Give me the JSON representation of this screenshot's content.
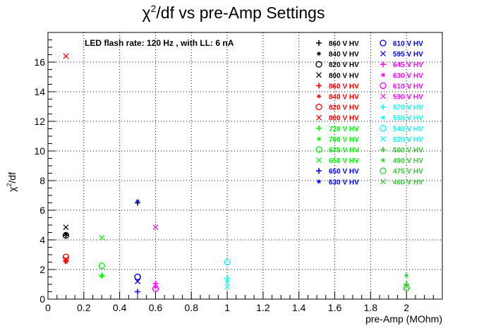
{
  "chart_data": {
    "type": "scatter",
    "title_main": "χ",
    "title_sup": "2",
    "title_rest": "/df vs pre-Amp Settings",
    "subtitle": "LED flash rate: 120 Hz , with LL: 6 nA",
    "xlabel": "pre-Amp (MOhm)",
    "ylabel_main": "χ",
    "ylabel_sup": "2",
    "ylabel_rest": "/df",
    "xlim": [
      0,
      2.2
    ],
    "ylim": [
      0,
      18
    ],
    "xticks": [
      "0",
      "0.2",
      "0.4",
      "0.6",
      "0.8",
      "1",
      "1.2",
      "1.4",
      "1.6",
      "1.8",
      "2"
    ],
    "yticks": [
      "0",
      "2",
      "4",
      "6",
      "8",
      "10",
      "12",
      "14",
      "16"
    ],
    "grid": true,
    "legend_position": "top-right",
    "series": [
      {
        "name": "860 V HV",
        "color": "#000000",
        "marker": "plus",
        "points": [
          [
            0.1,
            4.3
          ],
          [
            0.5,
            6.5
          ]
        ]
      },
      {
        "name": "840 V HV",
        "color": "#000000",
        "marker": "star",
        "points": [
          [
            0.1,
            4.4
          ]
        ]
      },
      {
        "name": "820 V HV",
        "color": "#000000",
        "marker": "circle",
        "points": [
          [
            0.1,
            4.3
          ],
          [
            0.5,
            1.5
          ]
        ]
      },
      {
        "name": "800 V HV",
        "color": "#000000",
        "marker": "cross",
        "points": [
          [
            0.1,
            4.85
          ],
          [
            0.5,
            1.2
          ]
        ]
      },
      {
        "name": "860 V HV",
        "color": "#ff0000",
        "marker": "plus",
        "points": [
          [
            0.1,
            2.6
          ]
        ]
      },
      {
        "name": "840 V HV",
        "color": "#ff0000",
        "marker": "star",
        "points": [
          [
            0.1,
            2.5
          ]
        ]
      },
      {
        "name": "820 V HV",
        "color": "#ff0000",
        "marker": "circle",
        "points": [
          [
            0.1,
            2.85
          ]
        ]
      },
      {
        "name": "800 V HV",
        "color": "#ff0000",
        "marker": "cross",
        "points": [
          [
            0.1,
            16.4
          ],
          [
            0.1,
            2.7
          ]
        ]
      },
      {
        "name": "720 V HV",
        "color": "#00ff00",
        "marker": "plus",
        "points": [
          [
            0.3,
            1.6
          ]
        ]
      },
      {
        "name": "700 V HV",
        "color": "#00ff00",
        "marker": "star",
        "points": [
          [
            0.3,
            1.55
          ]
        ]
      },
      {
        "name": "675 V HV",
        "color": "#00ff00",
        "marker": "circle",
        "points": [
          [
            0.3,
            2.25
          ]
        ]
      },
      {
        "name": "650 V HV",
        "color": "#00ff00",
        "marker": "cross",
        "points": [
          [
            0.3,
            4.15
          ]
        ]
      },
      {
        "name": "650 V HV",
        "color": "#0000ff",
        "marker": "plus",
        "points": [
          [
            0.5,
            0.5
          ]
        ]
      },
      {
        "name": "630 V HV",
        "color": "#0000ff",
        "marker": "star",
        "points": [
          [
            0.5,
            6.6
          ]
        ]
      },
      {
        "name": "610 V HV",
        "color": "#0000ff",
        "marker": "circle",
        "points": [
          [
            0.5,
            1.5
          ]
        ]
      },
      {
        "name": "595 V HV",
        "color": "#0000ff",
        "marker": "cross",
        "points": [
          [
            0.5,
            1.2
          ]
        ]
      },
      {
        "name": "645 V HV",
        "color": "#ff00ff",
        "marker": "plus",
        "points": [
          [
            0.6,
            1.05
          ]
        ]
      },
      {
        "name": "630 V HV",
        "color": "#ff00ff",
        "marker": "star",
        "points": [
          [
            0.6,
            0.85
          ]
        ]
      },
      {
        "name": "610 V HV",
        "color": "#ff00ff",
        "marker": "circle",
        "points": [
          [
            0.6,
            0.7
          ]
        ]
      },
      {
        "name": "590 V HV",
        "color": "#ff00ff",
        "marker": "cross",
        "points": [
          [
            0.6,
            4.85
          ]
        ]
      },
      {
        "name": "570 V HV",
        "color": "#00ffff",
        "marker": "plus",
        "points": [
          [
            1.0,
            1.4
          ]
        ]
      },
      {
        "name": "555 V HV",
        "color": "#00ffff",
        "marker": "star",
        "points": [
          [
            1.0,
            1.2
          ]
        ]
      },
      {
        "name": "540 V HV",
        "color": "#00ffff",
        "marker": "circle",
        "points": [
          [
            1.0,
            2.5
          ]
        ]
      },
      {
        "name": "520 V HV",
        "color": "#00ffff",
        "marker": "cross",
        "points": [
          [
            1.0,
            0.85
          ]
        ]
      },
      {
        "name": "500 V HV",
        "color": "#33cc33",
        "marker": "plus",
        "points": [
          [
            2.0,
            1.0
          ]
        ]
      },
      {
        "name": "490 V HV",
        "color": "#33cc33",
        "marker": "star",
        "points": [
          [
            2.0,
            1.6
          ]
        ]
      },
      {
        "name": "475 V HV",
        "color": "#33cc33",
        "marker": "circle",
        "points": [
          [
            2.0,
            0.75
          ]
        ]
      },
      {
        "name": "460 V HV",
        "color": "#33cc33",
        "marker": "cross",
        "points": [
          [
            2.0,
            0.85
          ]
        ]
      }
    ]
  }
}
